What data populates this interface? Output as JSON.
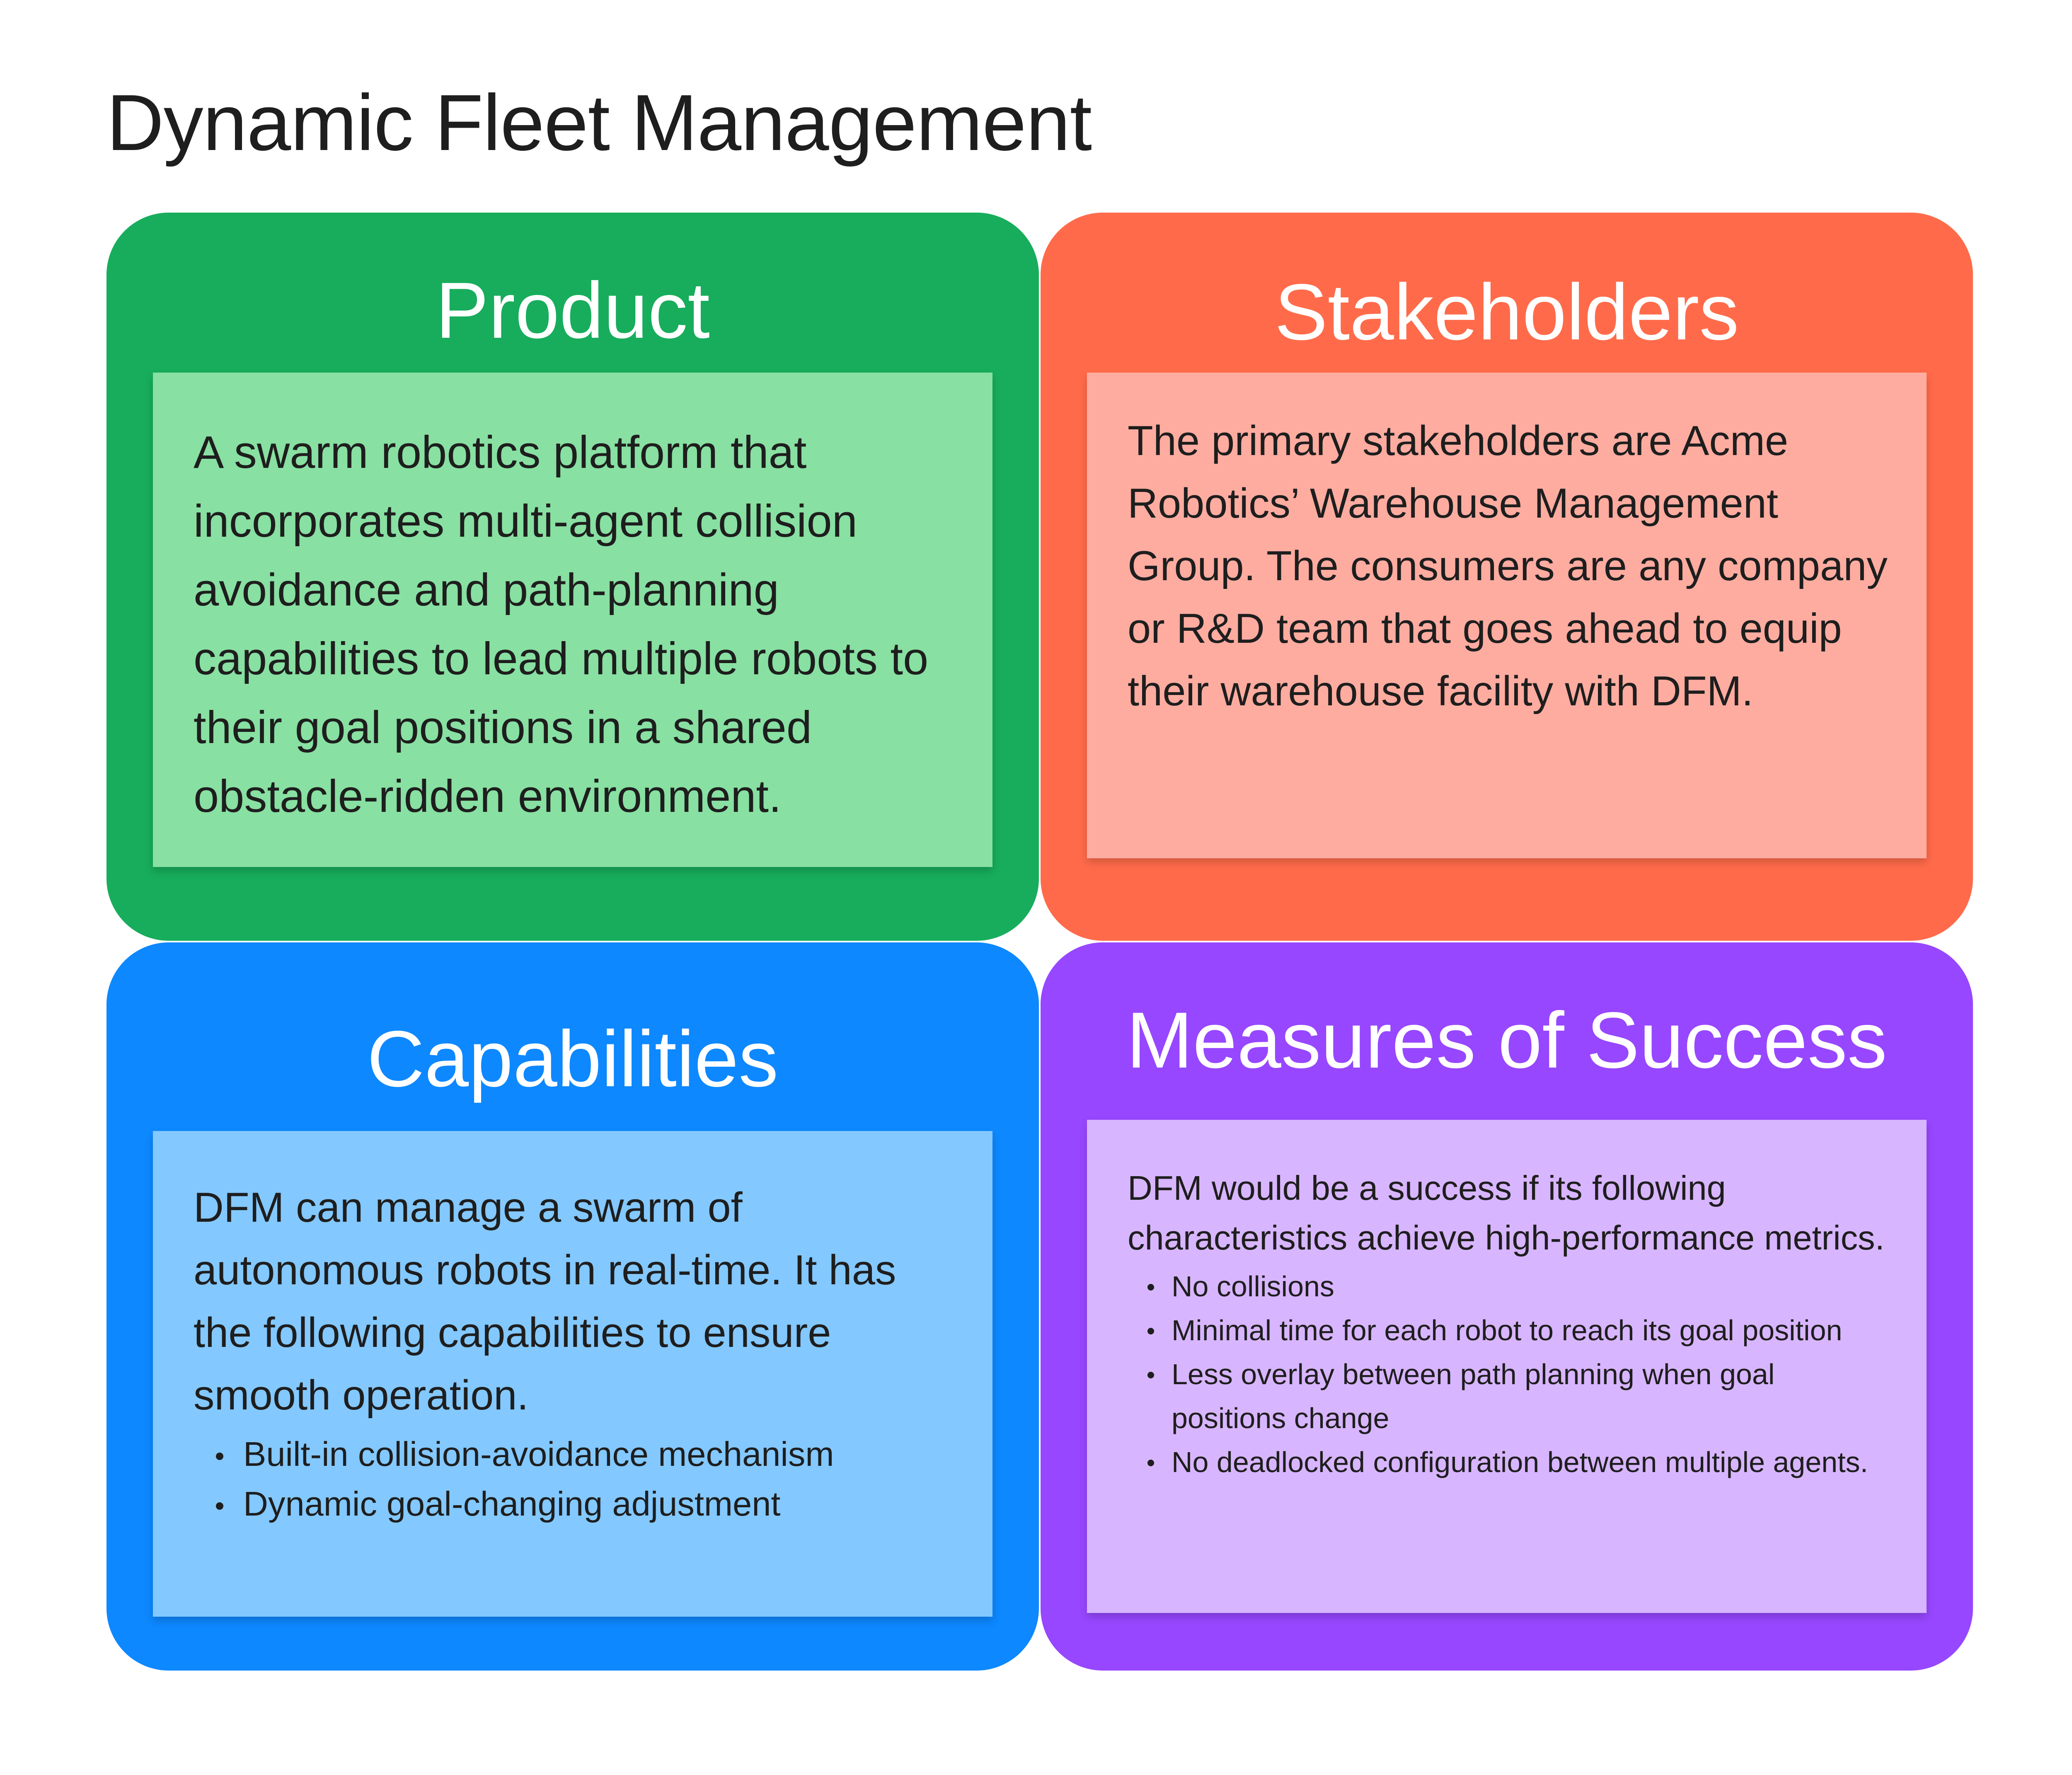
{
  "page_title": "Dynamic Fleet Management",
  "colors": {
    "product_frame": "#17ad5c",
    "product_note": "#88e0a2",
    "stakeholders_frame": "#ff6b4a",
    "stakeholders_note": "#ffaca0",
    "capabilities_frame": "#0d88ff",
    "capabilities_note": "#83c8ff",
    "measures_frame": "#9747ff",
    "measures_note": "#d8b5ff"
  },
  "quadrants": {
    "product": {
      "title": "Product",
      "text": "A swarm robotics platform that incorporates multi-agent collision avoidance and path-planning capabilities to lead multiple robots to their goal positions in a shared obstacle-ridden environment."
    },
    "stakeholders": {
      "title": "Stakeholders",
      "text": "The primary stakeholders are Acme Robotics’ Warehouse Management Group. The consumers are any company or R&D team that goes ahead to equip their warehouse facility with DFM."
    },
    "capabilities": {
      "title": "Capabilities",
      "text": "DFM can manage a swarm of autonomous robots in real-time. It has the following capabilities to ensure smooth operation.",
      "bullets": [
        "Built-in collision-avoidance mechanism",
        "Dynamic goal-changing adjustment"
      ]
    },
    "measures": {
      "title": "Measures of Success",
      "text": "DFM would be a success if its following characteristics achieve high-performance metrics.",
      "bullets": [
        "No collisions",
        "Minimal time for each robot to reach its goal position",
        "Less overlay between path planning when goal positions change",
        "No deadlocked configuration between multiple agents."
      ]
    }
  }
}
